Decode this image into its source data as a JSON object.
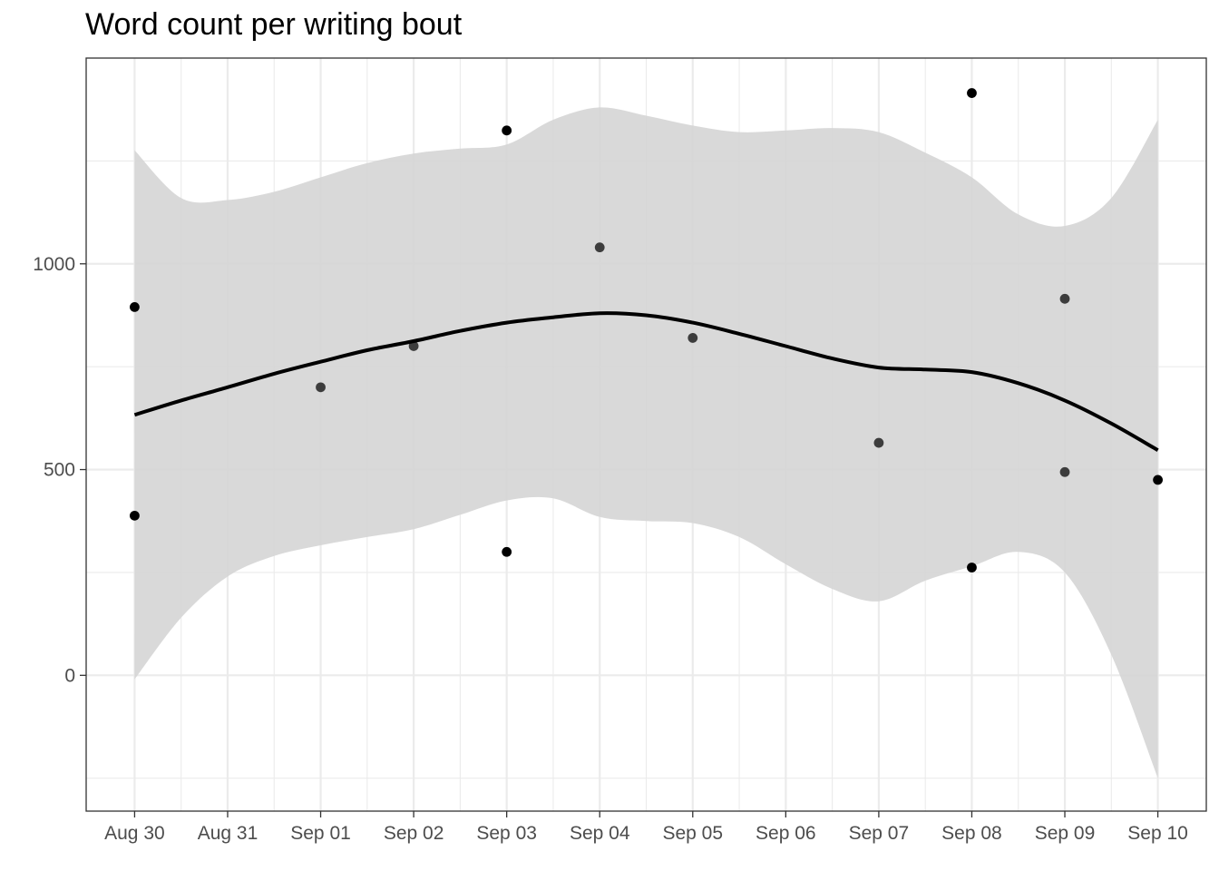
{
  "chart_data": {
    "type": "scatter",
    "title": "Word count per writing bout",
    "xlabel": "",
    "ylabel": "",
    "x_ticks": [
      "Aug 30",
      "Aug 31",
      "Sep 01",
      "Sep 02",
      "Sep 03",
      "Sep 04",
      "Sep 05",
      "Sep 06",
      "Sep 07",
      "Sep 08",
      "Sep 09",
      "Sep 10"
    ],
    "y_ticks": [
      0,
      500,
      1000
    ],
    "xlim": [
      "2023-08-29T11:30",
      "2023-09-10T12:30"
    ],
    "ylim": [
      -330,
      1500
    ],
    "grid": true,
    "legend": "none",
    "points": [
      {
        "x": "2023-08-30",
        "y": 895,
        "overplotted": true
      },
      {
        "x": "2023-08-30",
        "y": 388,
        "overplotted": true
      },
      {
        "x": "2023-09-01",
        "y": 700,
        "overplotted": false
      },
      {
        "x": "2023-09-02",
        "y": 800,
        "overplotted": false
      },
      {
        "x": "2023-09-03",
        "y": 1324,
        "overplotted": true
      },
      {
        "x": "2023-09-03",
        "y": 300,
        "overplotted": true
      },
      {
        "x": "2023-09-04",
        "y": 1040,
        "overplotted": false
      },
      {
        "x": "2023-09-05",
        "y": 820,
        "overplotted": false
      },
      {
        "x": "2023-09-07",
        "y": 565,
        "overplotted": false
      },
      {
        "x": "2023-09-08",
        "y": 1415,
        "overplotted": true
      },
      {
        "x": "2023-09-08",
        "y": 262,
        "overplotted": true
      },
      {
        "x": "2023-09-09",
        "y": 915,
        "overplotted": false
      },
      {
        "x": "2023-09-09",
        "y": 494,
        "overplotted": false
      },
      {
        "x": "2023-09-10",
        "y": 475,
        "overplotted": true
      }
    ],
    "smooth": {
      "method": "loess",
      "x": [
        "2023-08-30",
        "2023-08-30T12:00",
        "2023-08-31",
        "2023-08-31T12:00",
        "2023-09-01",
        "2023-09-01T12:00",
        "2023-09-02",
        "2023-09-02T12:00",
        "2023-09-03",
        "2023-09-03T12:00",
        "2023-09-04",
        "2023-09-04T12:00",
        "2023-09-05",
        "2023-09-05T12:00",
        "2023-09-06",
        "2023-09-06T12:00",
        "2023-09-07",
        "2023-09-07T12:00",
        "2023-09-08",
        "2023-09-08T12:00",
        "2023-09-09",
        "2023-09-09T12:00",
        "2023-09-10"
      ],
      "y": [
        633,
        668,
        700,
        733,
        762,
        790,
        812,
        837,
        857,
        870,
        880,
        875,
        857,
        830,
        800,
        770,
        748,
        743,
        737,
        710,
        668,
        612,
        547
      ],
      "upper": [
        1276,
        1160,
        1155,
        1175,
        1210,
        1245,
        1268,
        1280,
        1290,
        1350,
        1380,
        1360,
        1336,
        1320,
        1324,
        1330,
        1320,
        1270,
        1210,
        1120,
        1092,
        1160,
        1350
      ],
      "lower": [
        -10,
        140,
        240,
        290,
        316,
        336,
        355,
        390,
        425,
        430,
        385,
        375,
        370,
        336,
        270,
        210,
        180,
        230,
        265,
        300,
        250,
        50,
        -250
      ],
      "se": true
    },
    "colors": {
      "points": "#000000",
      "line": "#000000",
      "ribbon": "#d5d5d5",
      "grid": "#ebebeb",
      "panel_border": "#333333",
      "tick_text": "#4d4d4d"
    }
  }
}
